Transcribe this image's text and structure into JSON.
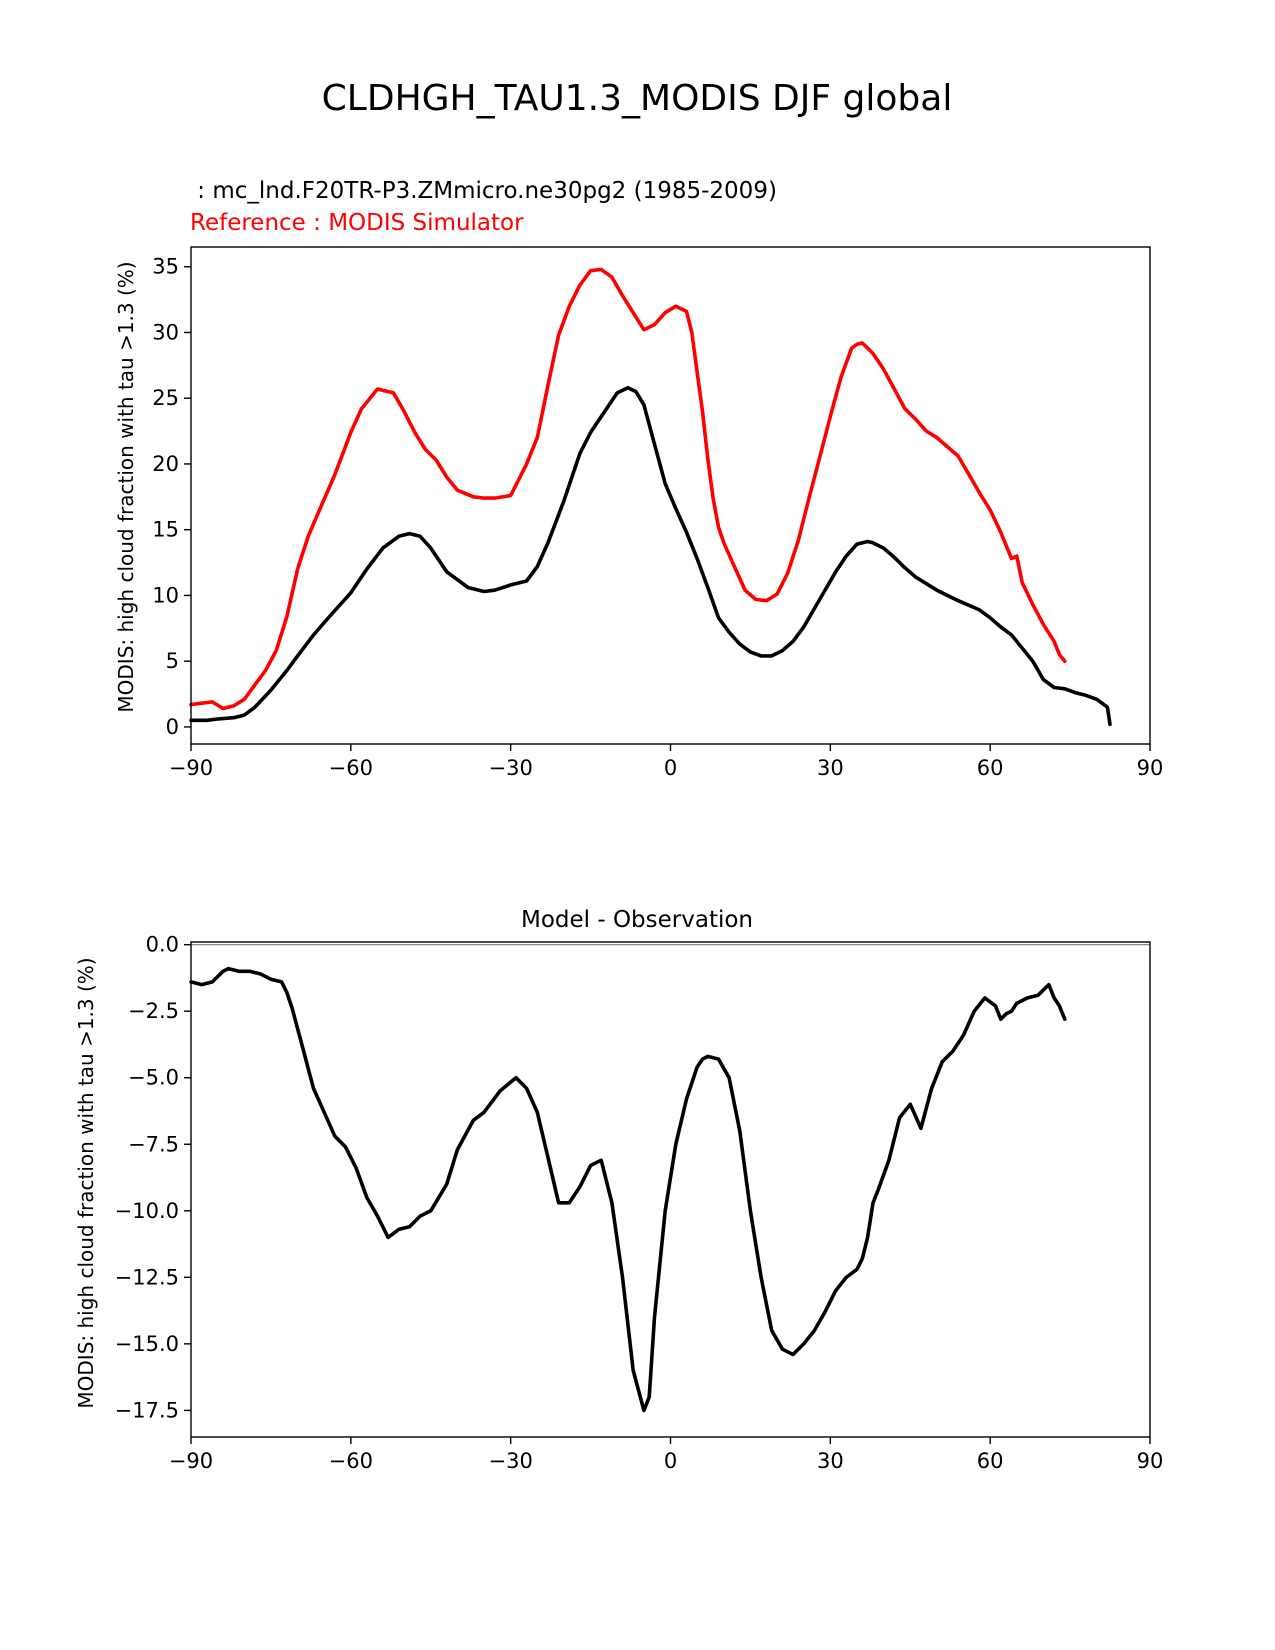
{
  "figure": {
    "title": "CLDHGH_TAU1.3_MODIS DJF global"
  },
  "chart_data": [
    {
      "type": "line",
      "test_label": " : mc_lnd.F20TR-P3.ZMmicro.ne30pg2 (1985-2009)",
      "reference_label": "Reference : MODIS Simulator",
      "title": "",
      "xlabel": "",
      "ylabel": "MODIS: high cloud fraction with tau >1.3 (%)",
      "xlim": [
        -90,
        90
      ],
      "ylim": [
        -1.3,
        36.5
      ],
      "xticks": [
        -90,
        -60,
        -30,
        0,
        30,
        60,
        90
      ],
      "xtick_labels": [
        "−90",
        "−60",
        "−30",
        "0",
        "30",
        "60",
        "90"
      ],
      "yticks": [
        0,
        5,
        10,
        15,
        20,
        25,
        30,
        35
      ],
      "ytick_labels": [
        "0",
        "5",
        "10",
        "15",
        "20",
        "25",
        "30",
        "35"
      ],
      "series": [
        {
          "name": "mc_lnd.F20TR-P3.ZMmicro.ne30pg2",
          "color": "#000000",
          "x": [
            -90,
            -87,
            -85,
            -82,
            -80,
            -78,
            -75,
            -72,
            -70,
            -67,
            -64,
            -60,
            -57,
            -54,
            -51,
            -49,
            -47,
            -45,
            -42,
            -38,
            -35,
            -33,
            -30,
            -27,
            -25,
            -23,
            -20,
            -17,
            -15,
            -13,
            -10,
            -8,
            -6.5,
            -5,
            -3,
            -1,
            1,
            3,
            5,
            7,
            9,
            11,
            13,
            15,
            17,
            19,
            21,
            23,
            25,
            28,
            31,
            33,
            35,
            37,
            38,
            40,
            42,
            44,
            46,
            50,
            54,
            58,
            60,
            62,
            64,
            66,
            68,
            70,
            72,
            74,
            76,
            78,
            80,
            81,
            82,
            82.5
          ],
          "y": [
            0.5,
            0.5,
            0.6,
            0.7,
            0.9,
            1.5,
            2.8,
            4.3,
            5.4,
            7.0,
            8.4,
            10.2,
            12.0,
            13.6,
            14.5,
            14.7,
            14.5,
            13.6,
            11.8,
            10.6,
            10.3,
            10.4,
            10.8,
            11.1,
            12.2,
            14.0,
            17.2,
            20.8,
            22.4,
            23.6,
            25.4,
            25.8,
            25.5,
            24.5,
            21.5,
            18.5,
            16.6,
            14.8,
            12.8,
            10.6,
            8.3,
            7.2,
            6.3,
            5.7,
            5.4,
            5.4,
            5.8,
            6.5,
            7.6,
            9.7,
            11.8,
            13.0,
            13.9,
            14.1,
            14.0,
            13.6,
            12.9,
            12.1,
            11.4,
            10.4,
            9.6,
            8.9,
            8.3,
            7.6,
            7.0,
            6.0,
            5.0,
            3.6,
            3.0,
            2.9,
            2.6,
            2.4,
            2.1,
            1.8,
            1.5,
            0.2
          ]
        },
        {
          "name": "Reference : MODIS Simulator",
          "color": "#ff0000",
          "x": [
            -90,
            -88,
            -86,
            -84,
            -82,
            -80,
            -78,
            -76,
            -74,
            -72,
            -70,
            -68,
            -66,
            -63,
            -60,
            -58,
            -55,
            -52,
            -50,
            -48,
            -46,
            -44,
            -42,
            -40,
            -37,
            -35,
            -33,
            -30,
            -27,
            -25,
            -23,
            -21,
            -19,
            -17,
            -15,
            -13,
            -11,
            -9,
            -7,
            -5,
            -3,
            -1,
            1,
            3,
            4,
            5,
            6,
            7,
            8,
            9,
            10,
            12,
            14,
            16,
            18,
            20,
            22,
            24,
            26,
            28,
            30,
            32,
            34,
            35,
            36,
            38,
            40,
            42,
            44,
            46,
            48,
            50,
            52,
            54,
            56,
            58,
            60,
            62,
            64,
            65,
            66,
            68,
            70,
            72,
            73,
            74
          ],
          "y": [
            1.7,
            1.8,
            1.9,
            1.4,
            1.6,
            2.1,
            3.2,
            4.3,
            5.8,
            8.4,
            12.0,
            14.5,
            16.4,
            19.2,
            22.4,
            24.2,
            25.7,
            25.4,
            24.0,
            22.4,
            21.1,
            20.3,
            19.0,
            18.0,
            17.5,
            17.4,
            17.4,
            17.6,
            20.0,
            22.0,
            26.0,
            29.8,
            32.0,
            33.6,
            34.7,
            34.8,
            34.2,
            32.8,
            31.5,
            30.2,
            30.6,
            31.5,
            32.0,
            31.6,
            30.0,
            27.0,
            24.0,
            20.4,
            17.4,
            15.2,
            14.0,
            12.2,
            10.4,
            9.7,
            9.6,
            10.1,
            11.7,
            14.2,
            17.4,
            20.5,
            23.6,
            26.6,
            28.8,
            29.1,
            29.2,
            28.4,
            27.2,
            25.7,
            24.2,
            23.4,
            22.5,
            22.0,
            21.3,
            20.6,
            19.2,
            17.8,
            16.5,
            14.8,
            12.8,
            13.0,
            11.0,
            9.3,
            7.8,
            6.5,
            5.5,
            5.0
          ]
        }
      ]
    },
    {
      "type": "line",
      "title": "Model - Observation",
      "xlabel": "",
      "ylabel": "MODIS: high cloud fraction with tau >1.3 (%)",
      "xlim": [
        -90,
        90
      ],
      "ylim": [
        -18.5,
        0.1
      ],
      "xticks": [
        -90,
        -60,
        -30,
        0,
        30,
        60,
        90
      ],
      "xtick_labels": [
        "−90",
        "−60",
        "−30",
        "0",
        "30",
        "60",
        "90"
      ],
      "yticks": [
        0,
        -2.5,
        -5,
        -7.5,
        -10,
        -12.5,
        -15,
        -17.5
      ],
      "ytick_labels": [
        "0.0",
        "−2.5",
        "−5.0",
        "−7.5",
        "−10.0",
        "−12.5",
        "−15.0",
        "−17.5"
      ],
      "reference_line": 0,
      "series": [
        {
          "name": "Model - Observation",
          "color": "#000000",
          "x": [
            -90,
            -88,
            -86,
            -84,
            -83,
            -81,
            -79,
            -77,
            -75,
            -73,
            -72,
            -71,
            -69,
            -67,
            -65,
            -63,
            -61,
            -59,
            -57,
            -55,
            -53,
            -51,
            -49,
            -47,
            -45,
            -42,
            -40,
            -37,
            -35,
            -32,
            -29,
            -27,
            -25,
            -23,
            -21,
            -19,
            -17,
            -15,
            -13,
            -11,
            -9,
            -7,
            -5,
            -4,
            -3,
            -1,
            1,
            3,
            5,
            6,
            7,
            9,
            11,
            13,
            15,
            17,
            19,
            21,
            23,
            25,
            27,
            29,
            31,
            33,
            35,
            36,
            37,
            38,
            39,
            41,
            43,
            45,
            47,
            49,
            51,
            53,
            55,
            57,
            59,
            61,
            62,
            63,
            64,
            65,
            67,
            69,
            71,
            72,
            73,
            74
          ],
          "y": [
            -1.4,
            -1.5,
            -1.4,
            -1.0,
            -0.9,
            -1.0,
            -1.0,
            -1.1,
            -1.3,
            -1.4,
            -1.8,
            -2.4,
            -3.9,
            -5.4,
            -6.3,
            -7.2,
            -7.6,
            -8.4,
            -9.5,
            -10.2,
            -11.0,
            -10.7,
            -10.6,
            -10.2,
            -10.0,
            -9.0,
            -7.7,
            -6.6,
            -6.3,
            -5.5,
            -5.0,
            -5.4,
            -6.3,
            -8.0,
            -9.7,
            -9.7,
            -9.1,
            -8.3,
            -8.1,
            -9.7,
            -12.5,
            -16.0,
            -17.5,
            -17.0,
            -14.0,
            -10.0,
            -7.5,
            -5.8,
            -4.6,
            -4.3,
            -4.2,
            -4.3,
            -5.0,
            -7.0,
            -10.0,
            -12.5,
            -14.5,
            -15.2,
            -15.4,
            -15.0,
            -14.5,
            -13.8,
            -13.0,
            -12.5,
            -12.2,
            -11.8,
            -11.0,
            -9.7,
            -9.2,
            -8.1,
            -6.5,
            -6.0,
            -6.9,
            -5.4,
            -4.4,
            -4.0,
            -3.4,
            -2.5,
            -2.0,
            -2.3,
            -2.8,
            -2.6,
            -2.5,
            -2.2,
            -2.0,
            -1.9,
            -1.5,
            -2.0,
            -2.3,
            -2.8
          ]
        }
      ]
    }
  ]
}
